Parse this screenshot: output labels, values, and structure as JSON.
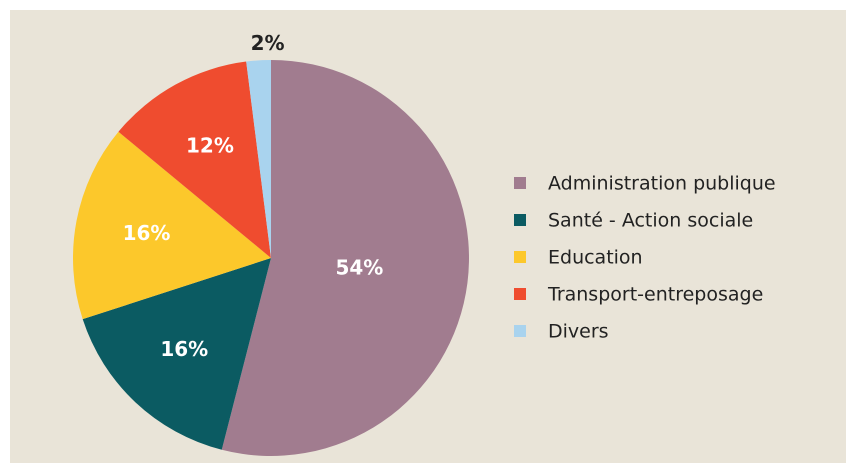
{
  "chart_data": {
    "type": "pie",
    "categories": [
      "Administration publique",
      "Santé - Action sociale",
      "Education",
      "Transport-entreposage",
      "Divers"
    ],
    "values": [
      54,
      16,
      16,
      12,
      2
    ],
    "value_labels": [
      "54%",
      "16%",
      "16%",
      "12%",
      "2%"
    ],
    "colors": [
      "#a17c8f",
      "#0b5b62",
      "#fcc82b",
      "#ef4c2f",
      "#a9d3ee"
    ]
  }
}
